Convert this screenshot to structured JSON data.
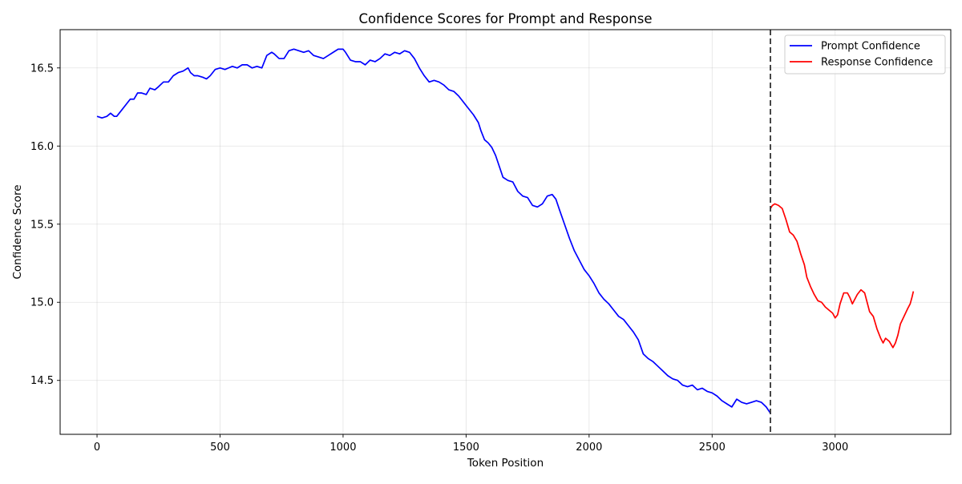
{
  "chart_data": {
    "type": "line",
    "title": "Confidence Scores for Prompt and Response",
    "xlabel": "Token Position",
    "ylabel": "Confidence Score",
    "xlim": [
      -150,
      3470
    ],
    "ylim": [
      14.155,
      16.745
    ],
    "x_ticks": [
      0,
      500,
      1000,
      1500,
      2000,
      2500,
      3000
    ],
    "y_ticks": [
      14.5,
      15.0,
      15.5,
      16.0,
      16.5
    ],
    "x_tick_labels": [
      "0",
      "500",
      "1000",
      "1500",
      "2000",
      "2500",
      "3000"
    ],
    "y_tick_labels": [
      "14.5",
      "15.0",
      "15.5",
      "16.0",
      "16.5"
    ],
    "grid": true,
    "legend_position": "top-right",
    "divider_x": 2737,
    "series": [
      {
        "name": "Prompt Confidence",
        "color": "#0000ff",
        "points": [
          [
            0,
            16.19
          ],
          [
            20,
            16.18
          ],
          [
            40,
            16.19
          ],
          [
            55,
            16.21
          ],
          [
            70,
            16.19
          ],
          [
            80,
            16.19
          ],
          [
            100,
            16.23
          ],
          [
            120,
            16.27
          ],
          [
            135,
            16.3
          ],
          [
            150,
            16.3
          ],
          [
            165,
            16.34
          ],
          [
            180,
            16.34
          ],
          [
            200,
            16.33
          ],
          [
            215,
            16.37
          ],
          [
            235,
            16.36
          ],
          [
            250,
            16.38
          ],
          [
            270,
            16.41
          ],
          [
            290,
            16.41
          ],
          [
            310,
            16.45
          ],
          [
            330,
            16.47
          ],
          [
            350,
            16.48
          ],
          [
            370,
            16.5
          ],
          [
            380,
            16.47
          ],
          [
            395,
            16.45
          ],
          [
            410,
            16.45
          ],
          [
            430,
            16.44
          ],
          [
            445,
            16.43
          ],
          [
            460,
            16.45
          ],
          [
            480,
            16.49
          ],
          [
            500,
            16.5
          ],
          [
            520,
            16.49
          ],
          [
            535,
            16.5
          ],
          [
            550,
            16.51
          ],
          [
            570,
            16.5
          ],
          [
            590,
            16.52
          ],
          [
            610,
            16.52
          ],
          [
            630,
            16.5
          ],
          [
            650,
            16.51
          ],
          [
            670,
            16.5
          ],
          [
            690,
            16.58
          ],
          [
            710,
            16.6
          ],
          [
            720,
            16.59
          ],
          [
            740,
            16.56
          ],
          [
            760,
            16.56
          ],
          [
            780,
            16.61
          ],
          [
            800,
            16.62
          ],
          [
            820,
            16.61
          ],
          [
            840,
            16.6
          ],
          [
            860,
            16.61
          ],
          [
            880,
            16.58
          ],
          [
            900,
            16.57
          ],
          [
            920,
            16.56
          ],
          [
            940,
            16.58
          ],
          [
            960,
            16.6
          ],
          [
            980,
            16.62
          ],
          [
            1000,
            16.62
          ],
          [
            1010,
            16.6
          ],
          [
            1030,
            16.55
          ],
          [
            1050,
            16.54
          ],
          [
            1070,
            16.54
          ],
          [
            1090,
            16.52
          ],
          [
            1110,
            16.55
          ],
          [
            1130,
            16.54
          ],
          [
            1150,
            16.56
          ],
          [
            1170,
            16.59
          ],
          [
            1190,
            16.58
          ],
          [
            1210,
            16.6
          ],
          [
            1230,
            16.59
          ],
          [
            1250,
            16.61
          ],
          [
            1270,
            16.6
          ],
          [
            1290,
            16.56
          ],
          [
            1310,
            16.5
          ],
          [
            1330,
            16.45
          ],
          [
            1350,
            16.41
          ],
          [
            1370,
            16.42
          ],
          [
            1390,
            16.41
          ],
          [
            1410,
            16.39
          ],
          [
            1430,
            16.36
          ],
          [
            1450,
            16.35
          ],
          [
            1470,
            16.32
          ],
          [
            1490,
            16.28
          ],
          [
            1510,
            16.24
          ],
          [
            1530,
            16.2
          ],
          [
            1550,
            16.15
          ],
          [
            1560,
            16.1
          ],
          [
            1575,
            16.04
          ],
          [
            1590,
            16.02
          ],
          [
            1605,
            15.99
          ],
          [
            1620,
            15.94
          ],
          [
            1635,
            15.87
          ],
          [
            1650,
            15.8
          ],
          [
            1670,
            15.78
          ],
          [
            1690,
            15.77
          ],
          [
            1710,
            15.71
          ],
          [
            1730,
            15.68
          ],
          [
            1750,
            15.67
          ],
          [
            1770,
            15.62
          ],
          [
            1790,
            15.61
          ],
          [
            1810,
            15.63
          ],
          [
            1830,
            15.68
          ],
          [
            1850,
            15.69
          ],
          [
            1865,
            15.66
          ],
          [
            1880,
            15.59
          ],
          [
            1900,
            15.5
          ],
          [
            1920,
            15.41
          ],
          [
            1940,
            15.33
          ],
          [
            1960,
            15.27
          ],
          [
            1980,
            15.21
          ],
          [
            2000,
            15.17
          ],
          [
            2020,
            15.12
          ],
          [
            2040,
            15.06
          ],
          [
            2060,
            15.02
          ],
          [
            2080,
            14.99
          ],
          [
            2100,
            14.95
          ],
          [
            2120,
            14.91
          ],
          [
            2140,
            14.89
          ],
          [
            2160,
            14.85
          ],
          [
            2180,
            14.81
          ],
          [
            2200,
            14.76
          ],
          [
            2220,
            14.67
          ],
          [
            2240,
            14.64
          ],
          [
            2260,
            14.62
          ],
          [
            2280,
            14.59
          ],
          [
            2300,
            14.56
          ],
          [
            2320,
            14.53
          ],
          [
            2340,
            14.51
          ],
          [
            2360,
            14.5
          ],
          [
            2380,
            14.47
          ],
          [
            2400,
            14.46
          ],
          [
            2420,
            14.47
          ],
          [
            2440,
            14.44
          ],
          [
            2460,
            14.45
          ],
          [
            2480,
            14.43
          ],
          [
            2500,
            14.42
          ],
          [
            2520,
            14.4
          ],
          [
            2540,
            14.37
          ],
          [
            2560,
            14.35
          ],
          [
            2580,
            14.33
          ],
          [
            2600,
            14.38
          ],
          [
            2620,
            14.36
          ],
          [
            2640,
            14.35
          ],
          [
            2660,
            14.36
          ],
          [
            2680,
            14.37
          ],
          [
            2700,
            14.36
          ],
          [
            2720,
            14.33
          ],
          [
            2737,
            14.29
          ]
        ]
      },
      {
        "name": "Response Confidence",
        "color": "#ff0000",
        "points": [
          [
            2737,
            15.6
          ],
          [
            2745,
            15.62
          ],
          [
            2755,
            15.63
          ],
          [
            2770,
            15.62
          ],
          [
            2785,
            15.6
          ],
          [
            2800,
            15.53
          ],
          [
            2815,
            15.45
          ],
          [
            2830,
            15.43
          ],
          [
            2845,
            15.39
          ],
          [
            2860,
            15.31
          ],
          [
            2875,
            15.24
          ],
          [
            2885,
            15.16
          ],
          [
            2900,
            15.1
          ],
          [
            2915,
            15.05
          ],
          [
            2930,
            15.01
          ],
          [
            2945,
            15.0
          ],
          [
            2960,
            14.97
          ],
          [
            2975,
            14.95
          ],
          [
            2990,
            14.93
          ],
          [
            3000,
            14.9
          ],
          [
            3010,
            14.92
          ],
          [
            3020,
            14.99
          ],
          [
            3035,
            15.06
          ],
          [
            3050,
            15.06
          ],
          [
            3060,
            15.03
          ],
          [
            3070,
            14.99
          ],
          [
            3080,
            15.02
          ],
          [
            3090,
            15.05
          ],
          [
            3105,
            15.08
          ],
          [
            3120,
            15.06
          ],
          [
            3130,
            15.0
          ],
          [
            3140,
            14.94
          ],
          [
            3155,
            14.91
          ],
          [
            3170,
            14.83
          ],
          [
            3185,
            14.77
          ],
          [
            3195,
            14.74
          ],
          [
            3205,
            14.77
          ],
          [
            3220,
            14.75
          ],
          [
            3235,
            14.71
          ],
          [
            3245,
            14.74
          ],
          [
            3255,
            14.79
          ],
          [
            3265,
            14.86
          ],
          [
            3280,
            14.91
          ],
          [
            3295,
            14.96
          ],
          [
            3305,
            14.99
          ],
          [
            3312,
            15.03
          ],
          [
            3318,
            15.07
          ]
        ]
      }
    ]
  }
}
